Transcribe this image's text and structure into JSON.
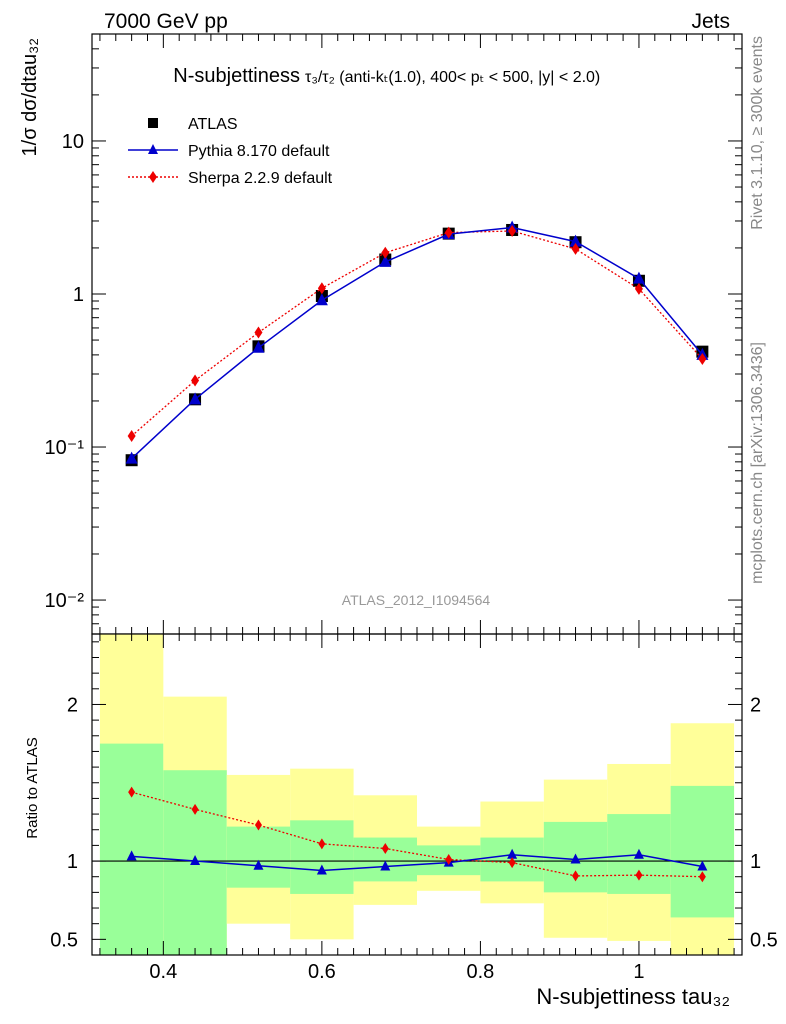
{
  "header": {
    "left": "7000 GeV pp",
    "right": "Jets"
  },
  "side_labels": {
    "top": "Rivet 3.1.10, ≥ 300k events",
    "bottom": "mcplots.cern.ch [arXiv:1306.3436]"
  },
  "chart_data": [
    {
      "type": "scatter",
      "title_main": "N-subjettiness",
      "title_formula": "τ₃/τ₂ (anti-kₜ(1.0), 400< pₜ < 500, |y| < 2.0)",
      "watermark": "ATLAS_2012_I1094564",
      "ylabel": "1/σ dσ/dtau₃₂",
      "y_scale": "log",
      "ylim": [
        0.006,
        50
      ],
      "xlim": [
        0.31,
        1.13
      ],
      "y_ticks": [
        {
          "value": 10,
          "label": "10"
        },
        {
          "value": 1,
          "label": "1"
        },
        {
          "value": 0.1,
          "label": "10⁻¹"
        },
        {
          "value": 0.01,
          "label": "10⁻²"
        }
      ],
      "legend_position": "top-left",
      "series": [
        {
          "name": "ATLAS",
          "marker": "square",
          "color": "#000000",
          "x": [
            0.36,
            0.44,
            0.52,
            0.6,
            0.68,
            0.76,
            0.84,
            0.92,
            1.0,
            1.08
          ],
          "y": [
            0.082,
            0.205,
            0.455,
            0.97,
            1.68,
            2.48,
            2.62,
            2.18,
            1.22,
            0.42
          ]
        },
        {
          "name": "Pythia 8.170 default",
          "marker": "triangle",
          "line": "solid",
          "color": "#0000cc",
          "x": [
            0.36,
            0.44,
            0.52,
            0.6,
            0.68,
            0.76,
            0.84,
            0.92,
            1.0,
            1.08
          ],
          "y": [
            0.084,
            0.205,
            0.445,
            0.91,
            1.62,
            2.46,
            2.72,
            2.2,
            1.26,
            0.4
          ]
        },
        {
          "name": "Sherpa 2.2.9 default",
          "marker": "diamond",
          "line": "dotted",
          "color": "#ee0000",
          "x": [
            0.36,
            0.44,
            0.52,
            0.6,
            0.68,
            0.76,
            0.84,
            0.92,
            1.0,
            1.08
          ],
          "y": [
            0.118,
            0.272,
            0.56,
            1.09,
            1.86,
            2.52,
            2.58,
            1.97,
            1.08,
            0.376
          ]
        }
      ]
    },
    {
      "type": "line",
      "ylabel": "Ratio to ATLAS",
      "xlabel": "N-subjettiness tau₃₂",
      "ylim": [
        0.4,
        2.45
      ],
      "xlim": [
        0.31,
        1.13
      ],
      "x_ticks": [
        "0.4",
        "0.6",
        "0.8",
        "1"
      ],
      "x_tick_values": [
        0.4,
        0.6,
        0.8,
        1.0
      ],
      "y_ticks": [
        "0.5",
        "1",
        "2"
      ],
      "y_tick_values": [
        0.5,
        1.0,
        2.0
      ],
      "band_colors": {
        "stat": "#99ff99",
        "total": "#ffff99"
      },
      "bins": [
        {
          "x_lo": 0.32,
          "x_hi": 0.4,
          "total": [
            0.3,
            2.7
          ],
          "stat": [
            0.3,
            1.75
          ]
        },
        {
          "x_lo": 0.4,
          "x_hi": 0.48,
          "total": [
            0.45,
            2.05
          ],
          "stat": [
            0.3,
            1.58
          ]
        },
        {
          "x_lo": 0.48,
          "x_hi": 0.56,
          "total": [
            0.6,
            1.55
          ],
          "stat": [
            0.83,
            1.22
          ]
        },
        {
          "x_lo": 0.56,
          "x_hi": 0.64,
          "total": [
            0.5,
            1.59
          ],
          "stat": [
            0.79,
            1.26
          ]
        },
        {
          "x_lo": 0.64,
          "x_hi": 0.72,
          "total": [
            0.72,
            1.42
          ],
          "stat": [
            0.87,
            1.15
          ]
        },
        {
          "x_lo": 0.72,
          "x_hi": 0.8,
          "total": [
            0.81,
            1.22
          ],
          "stat": [
            0.91,
            1.1
          ]
        },
        {
          "x_lo": 0.8,
          "x_hi": 0.88,
          "total": [
            0.73,
            1.38
          ],
          "stat": [
            0.87,
            1.15
          ]
        },
        {
          "x_lo": 0.88,
          "x_hi": 0.96,
          "total": [
            0.51,
            1.52
          ],
          "stat": [
            0.8,
            1.25
          ]
        },
        {
          "x_lo": 0.96,
          "x_hi": 1.04,
          "total": [
            0.49,
            1.62
          ],
          "stat": [
            0.79,
            1.3
          ]
        },
        {
          "x_lo": 1.04,
          "x_hi": 1.12,
          "total": [
            0.3,
            1.88
          ],
          "stat": [
            0.64,
            1.48
          ]
        }
      ],
      "series": [
        {
          "name": "Pythia 8.170 default",
          "color": "#0000cc",
          "x": [
            0.36,
            0.44,
            0.52,
            0.6,
            0.68,
            0.76,
            0.84,
            0.92,
            1.0,
            1.08
          ],
          "y": [
            1.03,
            1.0,
            0.97,
            0.94,
            0.965,
            0.99,
            1.04,
            1.01,
            1.04,
            0.965
          ]
        },
        {
          "name": "Sherpa 2.2.9 default",
          "color": "#ee0000",
          "x": [
            0.36,
            0.44,
            0.52,
            0.6,
            0.68,
            0.76,
            0.84,
            0.92,
            1.0,
            1.08
          ],
          "y": [
            1.44,
            1.33,
            1.23,
            1.11,
            1.08,
            1.01,
            0.99,
            0.905,
            0.91,
            0.9
          ]
        }
      ]
    }
  ]
}
